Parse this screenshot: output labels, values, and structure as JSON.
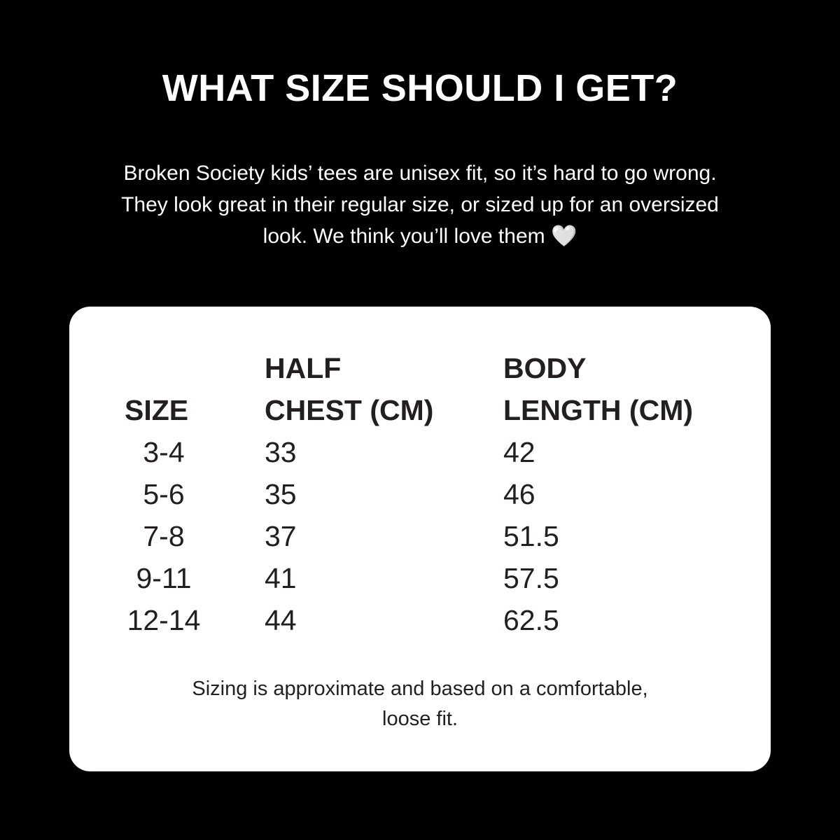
{
  "title": "WHAT SIZE SHOULD I GET?",
  "intro": "Broken Society kids’ tees are unisex fit, so it’s hard to go wrong. They look great in their regular size, or sized up for an oversized look. We think you’ll love them",
  "intro_icon": "white-heart-icon",
  "table": {
    "headers": [
      "SIZE",
      "HALF CHEST (CM)",
      "BODY LENGTH (CM)"
    ],
    "header_lines": [
      [
        "",
        "HALF",
        "BODY"
      ],
      [
        "SIZE",
        "CHEST (CM)",
        "LENGTH (CM)"
      ]
    ],
    "rows": [
      [
        "3-4",
        "33",
        "42"
      ],
      [
        "5-6",
        "35",
        "46"
      ],
      [
        "7-8",
        "37",
        "51.5"
      ],
      [
        "9-11",
        "41",
        "57.5"
      ],
      [
        "12-14",
        "44",
        "62.5"
      ]
    ]
  },
  "footnote": "Sizing is approximate and based on a comfortable, loose fit."
}
